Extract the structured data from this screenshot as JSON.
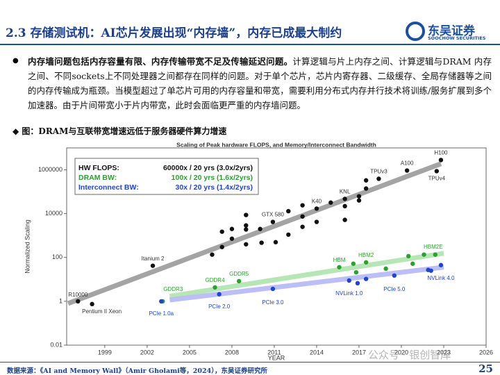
{
  "header": {
    "title": "2.3 存储测试机：AI芯片发展出现“内存墙”，内存已成最大制约",
    "logo": "东吴证券",
    "logo_en": "SOOCHOW SECURITIES"
  },
  "body": {
    "bold": "内存墙问题包括内存容量有限、内存传输带宽不足及传输延迟问题。",
    "text": "计算逻辑与片上内存之间、计算逻辑与DRAM 内存之间、不同sockets上不同处理器之间都存在同样的问题。对于单个芯片，芯片内寄存器、二级缓存、全局存储器等之间的内存传输成为瓶颈。当模型超过了单芯片可用的内存容量和带宽，需要利用分布式内存并行技术将训练/服务扩展到多个加速器。由于片间带宽小于片内带宽，此时会面临更严重的内存墙问题。"
  },
  "caption": "◆ 图：DRAM与互联带宽增速远低于服务器硬件算力增速",
  "chart_data": {
    "type": "scatter",
    "title": "Scaling of Peak hardware FLOPS, and Memory/Interconnect Bandwidth",
    "x_label": "YEAR",
    "y_label": "Normalized Scaling",
    "log_y": true,
    "xlim": [
      1996.3,
      2026
    ],
    "xticks": [
      1999,
      2002,
      2005,
      2008,
      2011,
      2014,
      2017,
      2020,
      2023,
      2026
    ],
    "ylim": [
      0.01,
      10000000
    ],
    "yticks": [
      0.01,
      1,
      100,
      10000,
      1000000
    ],
    "series": [
      {
        "name": "HW FLOPS:",
        "rate": "60000x / 20 yrs (3.0x/2yrs)",
        "color": "#111111",
        "x": [
          1997.1,
          1998.1,
          2002.4,
          2006.6,
          2007.3,
          2007.3,
          2008.0,
          2008.0,
          2009.0,
          2009.0,
          2009.0,
          2009.0,
          2010.0,
          2010.1,
          2010.9,
          2011.1,
          2012.0,
          2012.0,
          2013.0,
          2013.0,
          2013.0,
          2014.0,
          2014.0,
          2015.0,
          2016.0,
          2016.0,
          2016.0,
          2017.0,
          2017.0,
          2017.5,
          2017.5,
          2018.4,
          2020.4,
          2022.5,
          2022.8
        ],
        "values": [
          1,
          0.75,
          42,
          135,
          300,
          1500,
          720,
          2000,
          2900,
          8700,
          1900,
          400,
          2000,
          470,
          4200,
          500,
          13000,
          1100,
          24000,
          7400,
          2500,
          17000,
          4200,
          32000,
          47000,
          22000,
          5200,
          62000,
          40000,
          140000,
          330000,
          390000,
          930000,
          870000,
          2800000
        ],
        "labels": [
          "R10000",
          "Pentium II Xeon",
          "Itanium 2",
          null,
          null,
          null,
          null,
          null,
          null,
          null,
          null,
          null,
          null,
          null,
          "GTX 580",
          null,
          null,
          null,
          null,
          null,
          null,
          "K40",
          null,
          null,
          "KNL",
          null,
          null,
          null,
          null,
          null,
          null,
          "TPUv3",
          "A100",
          "TPUv4",
          "H100"
        ]
      },
      {
        "name": "DRAM BW:",
        "rate": "100x / 20 yrs (1.6x/2yrs)",
        "color": "#2ca02c",
        "x": [
          2003.1,
          2006.8,
          2008.5,
          2015.6,
          2016.6,
          2016.8,
          2017.5,
          2018.9,
          2020.5,
          2020.8,
          2021.6,
          2022.4
        ],
        "values": [
          1,
          4.3,
          8.3,
          36,
          52,
          21,
          60,
          31,
          115,
          52,
          135,
          135
        ],
        "labels": [
          "GDDR3",
          "GDDR4",
          "GDDR5",
          "HBM",
          null,
          null,
          "HBM2",
          null,
          null,
          null,
          null,
          "HBM2E"
        ]
      },
      {
        "name": "Interconnect BW:",
        "rate": "30x / 20 yrs (1.4x/2yrs)",
        "color": "#1f45d0",
        "x": [
          2003.0,
          2007.1,
          2010.9,
          2016.3,
          2016.9,
          2017.5,
          2019.5,
          2021.9,
          2022.1,
          2022.8
        ],
        "values": [
          1,
          2.1,
          3.7,
          8.9,
          6.7,
          10.5,
          15,
          27,
          25,
          45
        ],
        "labels": [
          "PCIe 1.0a",
          "PCIe 2.0",
          "PCIe 3.0",
          "NVLink 1.0",
          null,
          null,
          "PCIe 5.0",
          null,
          null,
          "NVLink 4.0"
        ]
      }
    ],
    "trends": [
      {
        "color": "#9a9a9a",
        "x": [
          1996.4,
          2022.8
        ],
        "values": [
          0.8,
          1900000
        ]
      },
      {
        "color": "#aee3ae",
        "x": [
          2003.6,
          2023.0
        ],
        "values": [
          1.7,
          155
        ]
      },
      {
        "color": "#b4b8f4",
        "x": [
          2003.6,
          2023.0
        ],
        "values": [
          1.15,
          36
        ]
      }
    ]
  },
  "watermark": "公众号 · 银创智库",
  "footer": {
    "source": "数据来源：《AI and Memory Wall》（Amir Gholami等，2024），东吴证券研究所",
    "page": "25"
  }
}
